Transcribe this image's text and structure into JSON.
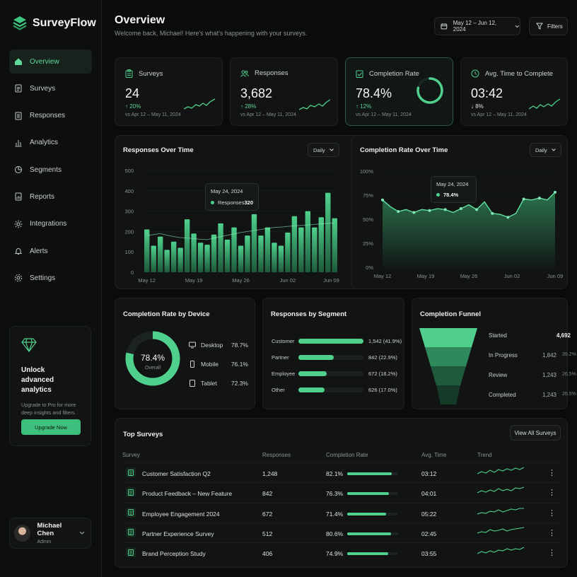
{
  "app": {
    "name": "SurveyFlow"
  },
  "nav": [
    {
      "label": "Overview",
      "icon": "home-icon",
      "active": true
    },
    {
      "label": "Surveys",
      "icon": "document-icon"
    },
    {
      "label": "Responses",
      "icon": "list-icon"
    },
    {
      "label": "Analytics",
      "icon": "bar-chart-icon"
    },
    {
      "label": "Segments",
      "icon": "segments-icon"
    },
    {
      "label": "Reports",
      "icon": "report-icon"
    },
    {
      "label": "Integrations",
      "icon": "gear-cog-icon"
    },
    {
      "label": "Alerts",
      "icon": "bell-icon"
    },
    {
      "label": "Settings",
      "icon": "settings-icon"
    }
  ],
  "upgrade": {
    "title": "Unlock advanced analytics",
    "text": "Upgrade to Pro for more deep insights and filters.",
    "button": "Upgrade Now"
  },
  "user": {
    "name": "Michael Chen",
    "role": "Admin"
  },
  "header": {
    "title": "Overview",
    "subtitle": "Welcome back, Michael! Here's what's happening with your surveys.",
    "date_range": "May 12 – Jun 12, 2024",
    "filters_label": "Filters"
  },
  "kpis": [
    {
      "label": "Surveys",
      "value": "24",
      "delta": "20%",
      "direction": "up",
      "compare": "vs Apr 12 – May 11, 2024",
      "icon": "clipboard-icon"
    },
    {
      "label": "Responses",
      "value": "3,682",
      "delta": "28%",
      "direction": "up",
      "compare": "vs Apr 12 – May 11, 2024",
      "icon": "users-icon"
    },
    {
      "label": "Completion Rate",
      "value": "78.4%",
      "delta": "12%",
      "direction": "up",
      "compare": "vs Apr 12 – May 11, 2024",
      "icon": "check-clipboard-icon",
      "ring_percent": 78.4
    },
    {
      "label": "Avg. Time to Complete",
      "value": "03:42",
      "delta": "8%",
      "direction": "down",
      "compare": "vs Apr 12 – May 11, 2024",
      "icon": "clock-icon"
    }
  ],
  "responses_chart": {
    "title": "Responses Over Time",
    "period": "Daily",
    "tooltip": {
      "date": "May 24, 2024",
      "series": "Responses",
      "value": "320"
    }
  },
  "completion_chart": {
    "title": "Completion Rate Over Time",
    "period": "Daily",
    "tooltip": {
      "date": "May 24, 2024",
      "value": "78.4%"
    }
  },
  "device": {
    "title": "Completion Rate by Device",
    "center_value": "78.4%",
    "center_label": "Overall",
    "items": [
      {
        "label": "Desktop",
        "value": "78.7%",
        "icon": "desktop-icon"
      },
      {
        "label": "Mobile",
        "value": "76.1%",
        "icon": "mobile-icon"
      },
      {
        "label": "Tablet",
        "value": "72.3%",
        "icon": "tablet-icon"
      }
    ]
  },
  "segments": {
    "title": "Responses by Segment",
    "items": [
      {
        "label": "Customer",
        "value": "1,542 (41.9%)",
        "fraction": 0.419
      },
      {
        "label": "Partner",
        "value": "842 (22.9%)",
        "fraction": 0.229
      },
      {
        "label": "Employee",
        "value": "672 (18.2%)",
        "fraction": 0.182
      },
      {
        "label": "Other",
        "value": "626 (17.0%)",
        "fraction": 0.17
      }
    ]
  },
  "funnel": {
    "title": "Completion Funnel",
    "stages": [
      {
        "label": "Started",
        "value": "4,692",
        "pct": ""
      },
      {
        "label": "In Progress",
        "value": "1,842",
        "pct": "39.2%"
      },
      {
        "label": "Review",
        "value": "1,243",
        "pct": "26.5%"
      },
      {
        "label": "Completed",
        "value": "1,243",
        "pct": "26.5%"
      }
    ]
  },
  "top_surveys": {
    "title": "Top Surveys",
    "view_all": "View All Surveys",
    "columns": [
      "Survey",
      "Responses",
      "Completion Rate",
      "Avg. Time",
      "Trend"
    ],
    "rows": [
      {
        "name": "Customer Satisfaction Q2",
        "responses": "1,248",
        "rate": "82.1%",
        "fraction": 0.821,
        "time": "03:12"
      },
      {
        "name": "Product Feedback – New Feature",
        "responses": "842",
        "rate": "76.3%",
        "fraction": 0.763,
        "time": "04:01"
      },
      {
        "name": "Employee Engagement 2024",
        "responses": "672",
        "rate": "71.4%",
        "fraction": 0.714,
        "time": "05:22"
      },
      {
        "name": "Partner Experience Survey",
        "responses": "512",
        "rate": "80.6%",
        "fraction": 0.806,
        "time": "02:45"
      },
      {
        "name": "Brand Perception Study",
        "responses": "406",
        "rate": "74.9%",
        "fraction": 0.749,
        "time": "03:55"
      }
    ]
  },
  "chart_data": [
    {
      "type": "bar",
      "title": "Responses Over Time",
      "x_ticks": [
        "May 12",
        "May 19",
        "May 26",
        "Jun 02",
        "Jun 09"
      ],
      "y_ticks": [
        "0",
        "100",
        "200",
        "300",
        "400",
        "500"
      ],
      "ylim": [
        0,
        500
      ],
      "values": [
        210,
        130,
        175,
        110,
        150,
        120,
        260,
        190,
        145,
        135,
        185,
        240,
        160,
        220,
        130,
        180,
        285,
        180,
        220,
        145,
        130,
        195,
        275,
        220,
        300,
        220,
        270,
        390,
        265
      ],
      "line": [
        180,
        185,
        190,
        182,
        175,
        170,
        168,
        165,
        162,
        160,
        168,
        175,
        182,
        188,
        195,
        200,
        205,
        210,
        215,
        220,
        222,
        225,
        228,
        230,
        232,
        235,
        238,
        240,
        242
      ]
    },
    {
      "type": "area",
      "title": "Completion Rate Over Time",
      "x_ticks": [
        "May 12",
        "May 19",
        "May 26",
        "Jun 02",
        "Jun 09"
      ],
      "y_ticks": [
        "0%",
        "25%",
        "50%",
        "75%",
        "100%"
      ],
      "ylim": [
        0,
        100
      ],
      "values": [
        70,
        63,
        58,
        60,
        57,
        60,
        59,
        61,
        60,
        57,
        61,
        65,
        60,
        68,
        56,
        55,
        52,
        56,
        71,
        70,
        72,
        70,
        78
      ]
    }
  ]
}
